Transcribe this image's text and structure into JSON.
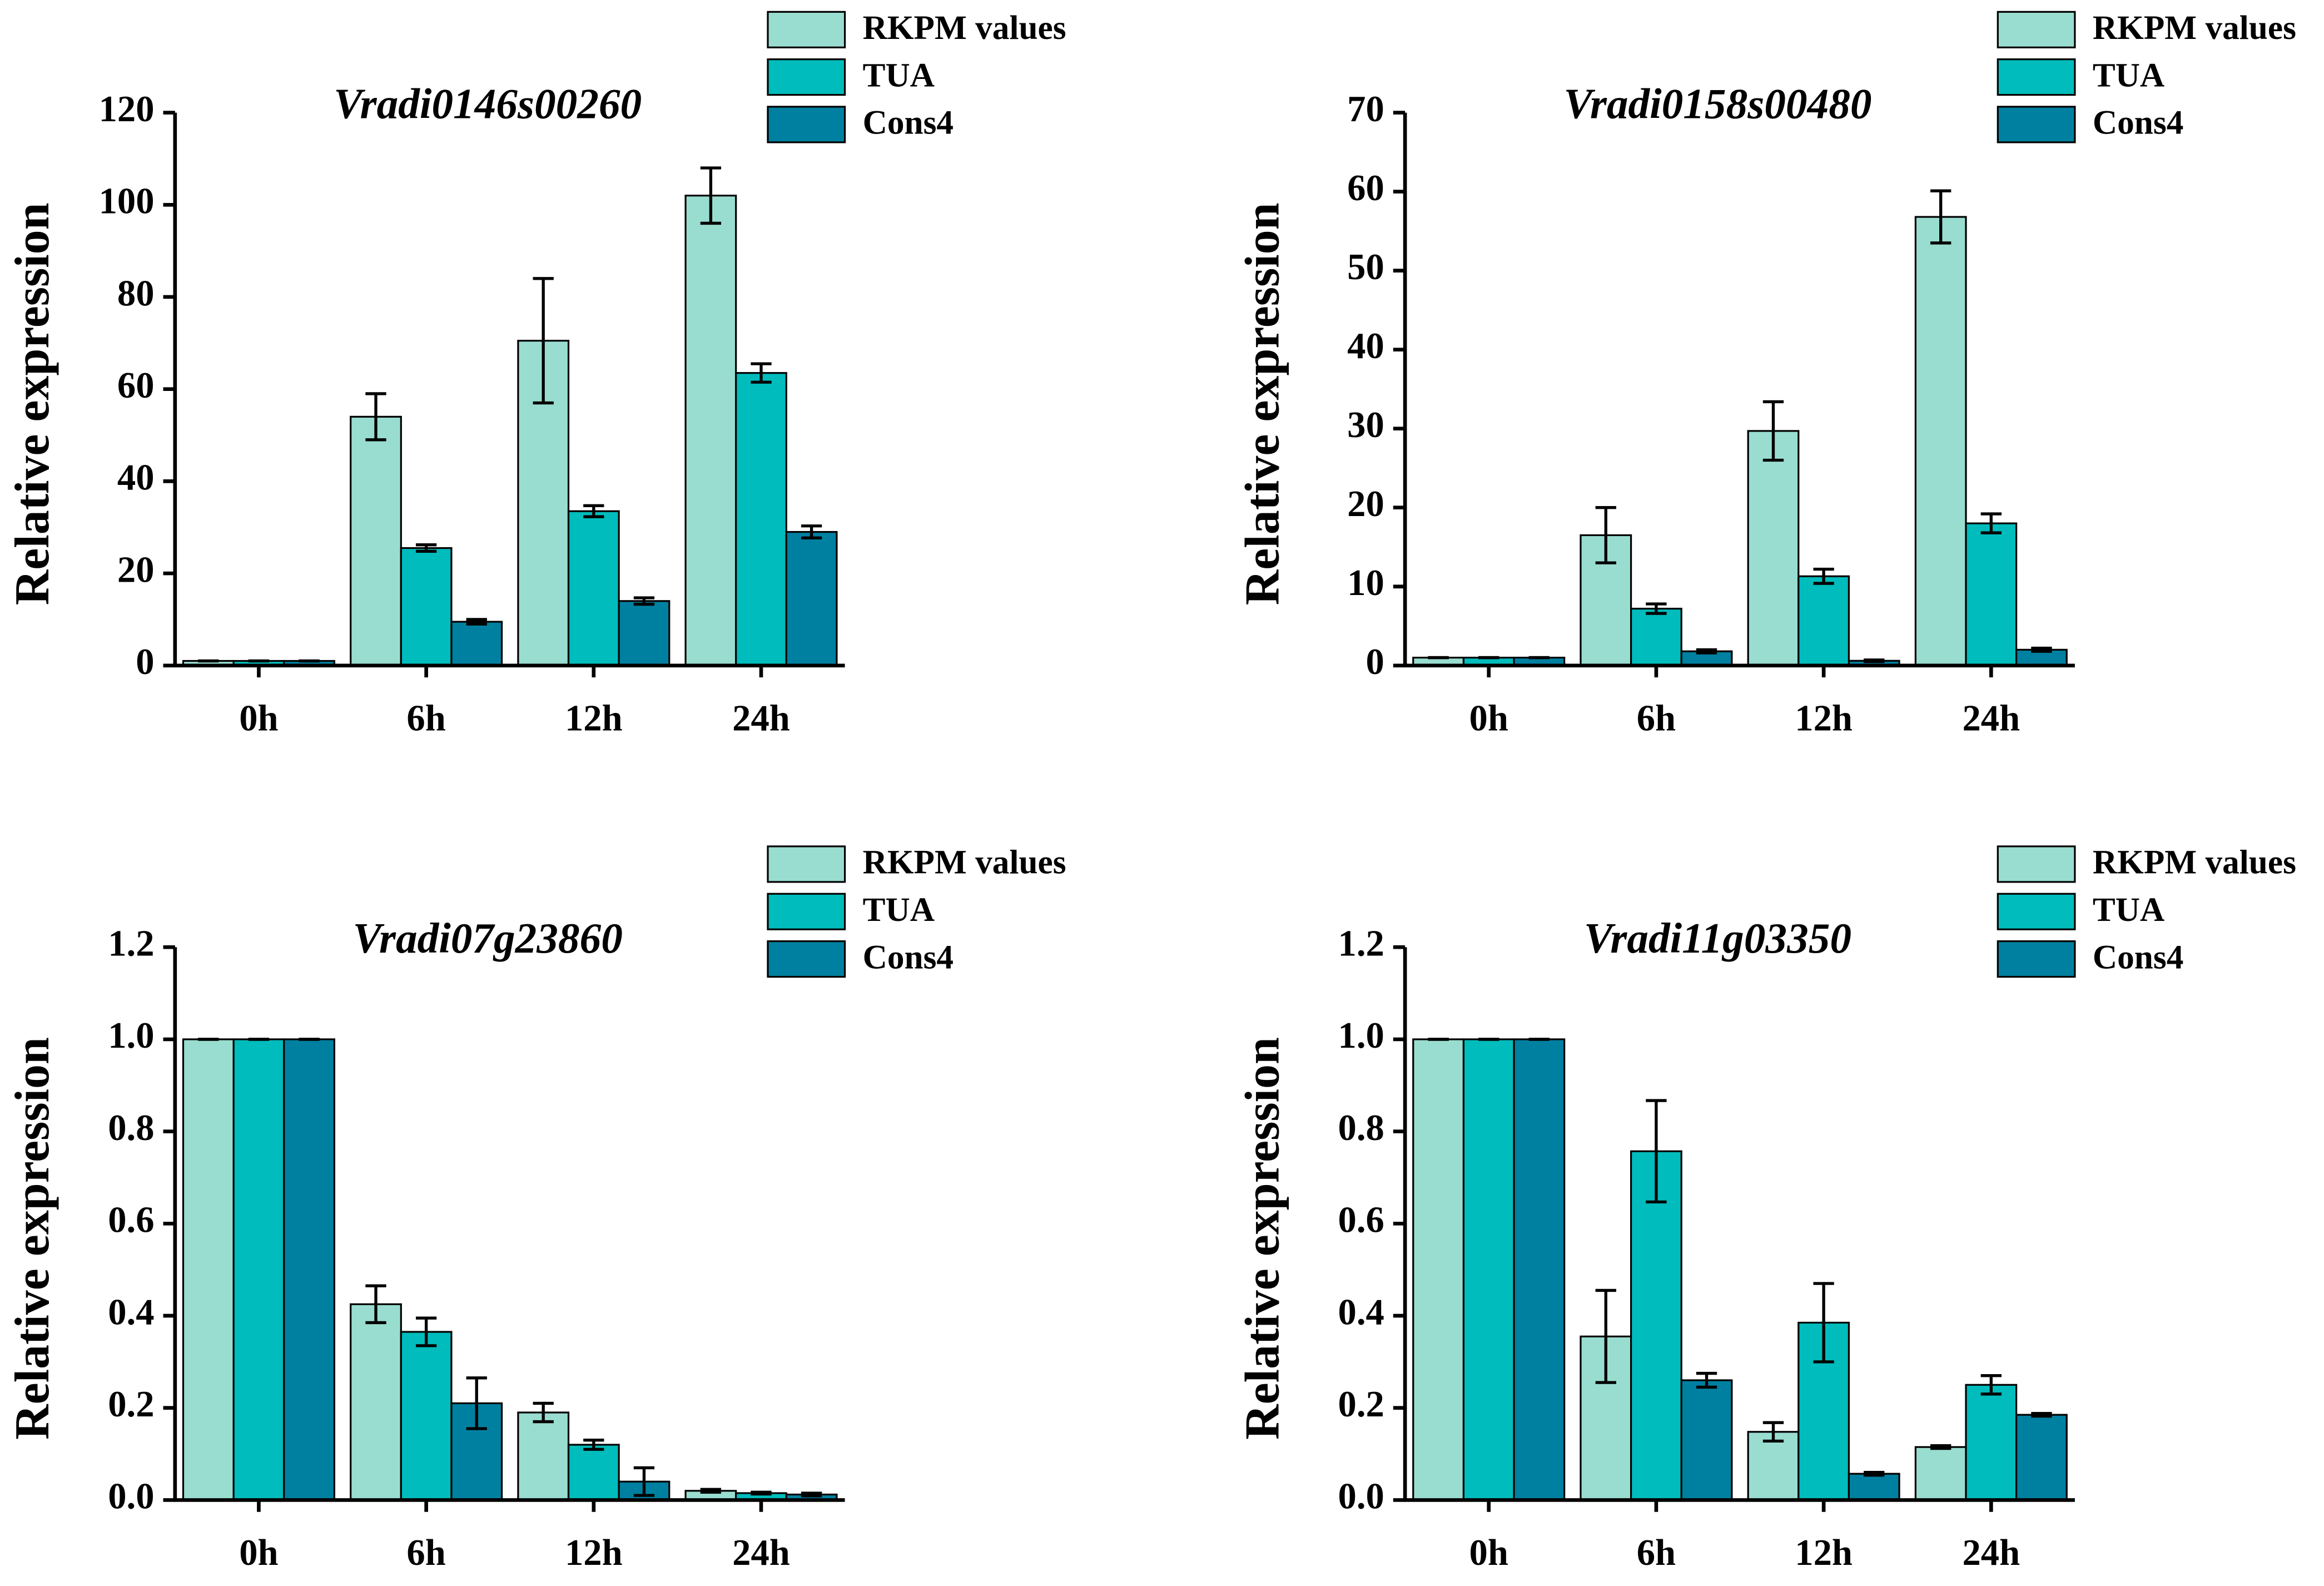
{
  "chart_data": [
    {
      "type": "bar",
      "title": "Vradi0146s00260",
      "y_label": "Relative expression",
      "categories": [
        "0h",
        "6h",
        "12h",
        "24h"
      ],
      "series": [
        {
          "name": "RKPM values",
          "color": "#99ddd0",
          "values": [
            1,
            54,
            70.5,
            102
          ],
          "errors": [
            0,
            5,
            13.5,
            6
          ]
        },
        {
          "name": "TUA",
          "color": "#00bcbc",
          "values": [
            1,
            25.5,
            33.5,
            63.5
          ],
          "errors": [
            0,
            0.7,
            1.2,
            2
          ]
        },
        {
          "name": "Cons4",
          "color": "#0080a0",
          "values": [
            1,
            9.5,
            14,
            29
          ],
          "errors": [
            0,
            0.5,
            0.7,
            1.3
          ]
        }
      ],
      "ylim": [
        0,
        120
      ],
      "yticks": [
        0,
        20,
        40,
        60,
        80,
        100,
        120
      ]
    },
    {
      "type": "bar",
      "title": "Vradi0158s00480",
      "y_label": "Relative expression",
      "categories": [
        "0h",
        "6h",
        "12h",
        "24h"
      ],
      "series": [
        {
          "name": "RKPM values",
          "color": "#99ddd0",
          "values": [
            1,
            16.5,
            29.7,
            56.8
          ],
          "errors": [
            0,
            3.5,
            3.7,
            3.3
          ]
        },
        {
          "name": "TUA",
          "color": "#00bcbc",
          "values": [
            1,
            7.2,
            11.3,
            18
          ],
          "errors": [
            0,
            0.6,
            0.9,
            1.2
          ]
        },
        {
          "name": "Cons4",
          "color": "#0080a0",
          "values": [
            1,
            1.8,
            0.6,
            2
          ],
          "errors": [
            0,
            0.2,
            0.1,
            0.2
          ]
        }
      ],
      "ylim": [
        0,
        70
      ],
      "yticks": [
        0,
        10,
        20,
        30,
        40,
        50,
        60,
        70
      ]
    },
    {
      "type": "bar",
      "title": "Vradi07g23860",
      "y_label": "Relative expression",
      "categories": [
        "0h",
        "6h",
        "12h",
        "24h"
      ],
      "series": [
        {
          "name": "RKPM values",
          "color": "#99ddd0",
          "values": [
            1,
            0.425,
            0.19,
            0.02
          ],
          "errors": [
            0,
            0.04,
            0.02,
            0.003
          ]
        },
        {
          "name": "TUA",
          "color": "#00bcbc",
          "values": [
            1,
            0.365,
            0.12,
            0.015
          ],
          "errors": [
            0,
            0.03,
            0.01,
            0.002
          ]
        },
        {
          "name": "Cons4",
          "color": "#0080a0",
          "values": [
            1,
            0.21,
            0.04,
            0.012
          ],
          "errors": [
            0,
            0.055,
            0.03,
            0.003
          ]
        }
      ],
      "ylim": [
        0,
        1.2
      ],
      "yticks": [
        {
          "value": 0,
          "label": "0.0"
        },
        0.2,
        0.4,
        0.6,
        0.8,
        {
          "value": 1,
          "label": "1.0"
        },
        1.2
      ]
    },
    {
      "type": "bar",
      "title": "Vradi11g03350",
      "y_label": "Relative expression",
      "categories": [
        "0h",
        "6h",
        "12h",
        "24h"
      ],
      "series": [
        {
          "name": "RKPM values",
          "color": "#99ddd0",
          "values": [
            1,
            0.355,
            0.148,
            0.115
          ],
          "errors": [
            0,
            0.1,
            0.02,
            0.003
          ]
        },
        {
          "name": "TUA",
          "color": "#00bcbc",
          "values": [
            1,
            0.757,
            0.385,
            0.25
          ],
          "errors": [
            0,
            0.11,
            0.085,
            0.02
          ]
        },
        {
          "name": "Cons4",
          "color": "#0080a0",
          "values": [
            1,
            0.26,
            0.057,
            0.185
          ],
          "errors": [
            0,
            0.015,
            0.003,
            0.003
          ]
        }
      ],
      "ylim": [
        0,
        1.2
      ],
      "yticks": [
        {
          "value": 0,
          "label": "0.0"
        },
        0.2,
        0.4,
        0.6,
        0.8,
        {
          "value": 1,
          "label": "1.0"
        },
        1.2
      ]
    }
  ]
}
